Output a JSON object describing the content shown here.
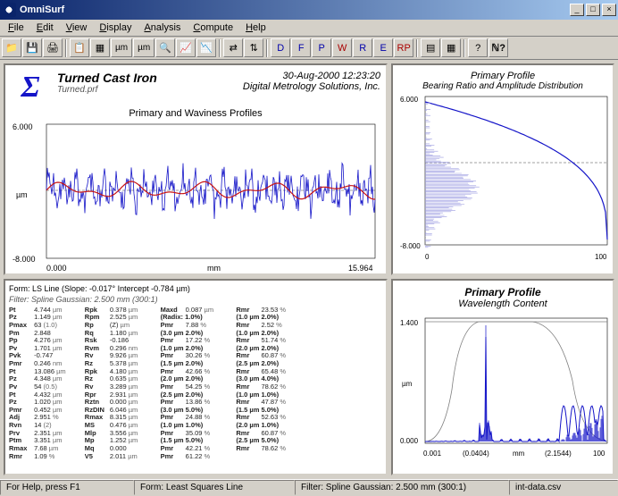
{
  "app": {
    "title": "OmniSurf"
  },
  "win_buttons": {
    "min": "_",
    "max": "□",
    "close": "×"
  },
  "menu": [
    "File",
    "Edit",
    "View",
    "Display",
    "Analysis",
    "Compute",
    "Help"
  ],
  "toolbar_text": {
    "um": "µm",
    "um2": "µm"
  },
  "header": {
    "title": "Turned Cast Iron",
    "file": "Turned.prf",
    "datetime": "30-Aug-2000  12:23:20",
    "company": "Digital Metrology Solutions, Inc.",
    "chart_title": "Primary and Waviness Profiles"
  },
  "chart1": {
    "ymax": "6.000",
    "ymin": "-8.000",
    "yunit": "µm",
    "xmin": "0.000",
    "xmax": "15.964",
    "xunit": "mm",
    "primary_color": "#1414c8",
    "waviness_color": "#c81414",
    "bg": "#ffffff",
    "axis_color": "#000000"
  },
  "chart2": {
    "title1": "Primary Profile",
    "title2": "Bearing Ratio and Amplitude Distribution",
    "ymax": "6.000",
    "ymin": "-8.000",
    "xmin": "0",
    "xmax": "100",
    "curve_color": "#1414c8",
    "amp_color": "#9a9ae0"
  },
  "params_header": {
    "line1": "Form: LS Line   (Slope: -0.017°  Intercept -0.784 µm)",
    "line2": "Filter: Spline Gaussian: 2.500 mm (300:1)"
  },
  "params": [
    [
      "Pt",
      "4.744",
      "µm",
      "Rpk",
      "0.378",
      "µm",
      "Maxd",
      "0.087",
      "µm",
      "Rmr",
      "23.53",
      "%"
    ],
    [
      "Pz",
      "1.149",
      "µm",
      "Rpm",
      "2.525",
      "µm",
      "(Radix: 1.0%)",
      "",
      "",
      "(1.0 µm  2.0%)",
      "",
      ""
    ],
    [
      "Pmax",
      "63",
      "(1.0)",
      "Rp",
      "(Z)",
      "µm",
      "Pmr",
      "7.88",
      "%",
      "Rmr",
      "2.52",
      "%"
    ],
    [
      "Pm",
      "2.848",
      "",
      "Rq",
      "1.180",
      "µm",
      "(3.0 µm  2.0%)",
      "",
      "",
      "(1.0 µm  2.0%)",
      "",
      ""
    ],
    [
      "Pp",
      "4.276",
      "µm",
      "Rsk",
      "-0.186",
      "",
      "Pmr",
      "17.22",
      "%",
      "Rmr",
      "51.74",
      "%"
    ],
    [
      "Pv",
      "1.701",
      "µm",
      "Rvm",
      "0.296",
      "nm",
      "(1.0 µm  2.0%)",
      "",
      "",
      "(2.0 µm  2.0%)",
      "",
      ""
    ],
    [
      "Pvk",
      "-0.747",
      "",
      "Rv",
      "9.926",
      "µm",
      "Pmr",
      "30.26",
      "%",
      "Rmr",
      "60.87",
      "%"
    ],
    [
      "Pmr",
      "0.246",
      "nm",
      "Rz",
      "5.378",
      "µm",
      "(1.5 µm  2.0%)",
      "",
      "",
      "(2.5 µm  2.0%)",
      "",
      ""
    ],
    [
      "Pt",
      "13.086",
      "µm",
      "Rpk",
      "4.180",
      "µm",
      "Pmr",
      "42.66",
      "%",
      "Rmr",
      "65.48",
      "%"
    ],
    [
      "Pz",
      "4.348",
      "µm",
      "Rz",
      "0.635",
      "µm",
      "(2.0 µm  2.0%)",
      "",
      "",
      "(3.0 µm  4.0%)",
      "",
      ""
    ],
    [
      "Pv",
      "54",
      "(0.5)",
      "Rv",
      "3.289",
      "µm",
      "Pmr",
      "54.25",
      "%",
      "Rmr",
      "78.62",
      "%"
    ],
    [
      "Pt",
      "4.432",
      "µm",
      "Rpr",
      "2.931",
      "µm",
      "(2.5 µm  2.0%)",
      "",
      "",
      "(1.0 µm  1.0%)",
      "",
      ""
    ],
    [
      "Pz",
      "1.020",
      "µm",
      "Rztn",
      "0.000",
      "µm",
      "Pmr",
      "13.86",
      "%",
      "Rmr",
      "47.87",
      "%"
    ],
    [
      "Pmr",
      "0.452",
      "µm",
      "RzDIN",
      "6.046",
      "µm",
      "(3.0 µm  5.0%)",
      "",
      "",
      "(1.5 µm  5.0%)",
      "",
      ""
    ],
    [
      "Adj",
      "2.951",
      "%",
      "Rmax",
      "8.315",
      "µm",
      "Pmr",
      "24.88",
      "%",
      "Rmr",
      "52.63",
      "%"
    ],
    [
      "Rvn",
      "14",
      "(2)",
      "MS",
      "0.476",
      "µm",
      "(1.0 µm  1.0%)",
      "",
      "",
      "(2.0 µm  1.0%)",
      "",
      ""
    ],
    [
      "Prv",
      "2.351",
      "µm",
      "Mlp",
      "3.556",
      "µm",
      "Pmr",
      "35.09",
      "%",
      "Rmr",
      "60.87",
      "%"
    ],
    [
      "Ptm",
      "3.351",
      "µm",
      "Mp",
      "1.252",
      "µm",
      "(1.5 µm  5.0%)",
      "",
      "",
      "(2.5 µm  5.0%)",
      "",
      ""
    ],
    [
      "Rmax",
      "7.68",
      "µm",
      "Mq",
      "0.000",
      "",
      "Pmr",
      "42.21",
      "%",
      "Rmr",
      "78.62",
      "%"
    ],
    [
      "Rmr",
      "1.09",
      "%",
      "V5",
      "2.011",
      "µm",
      "Pmr",
      "61.22",
      "%",
      "",
      "",
      ""
    ]
  ],
  "chart3": {
    "title1": "Primary Profile",
    "title2": "Wavelength Content",
    "ymax": "1.400",
    "ymin": "0.000",
    "yunit": "µm",
    "xmin": "0.001",
    "xlabel1": "(0.0404)",
    "xunit": "mm",
    "xlabel2": "(2.1544)",
    "xmax": "100",
    "spectrum_color": "#1414c8",
    "filter_color": "#808080"
  },
  "statusbar": {
    "help": "For Help, press F1",
    "form": "Form: Least Squares Line",
    "filter": "Filter: Spline Gaussian: 2.500 mm (300:1)",
    "file": "int-data.csv"
  }
}
